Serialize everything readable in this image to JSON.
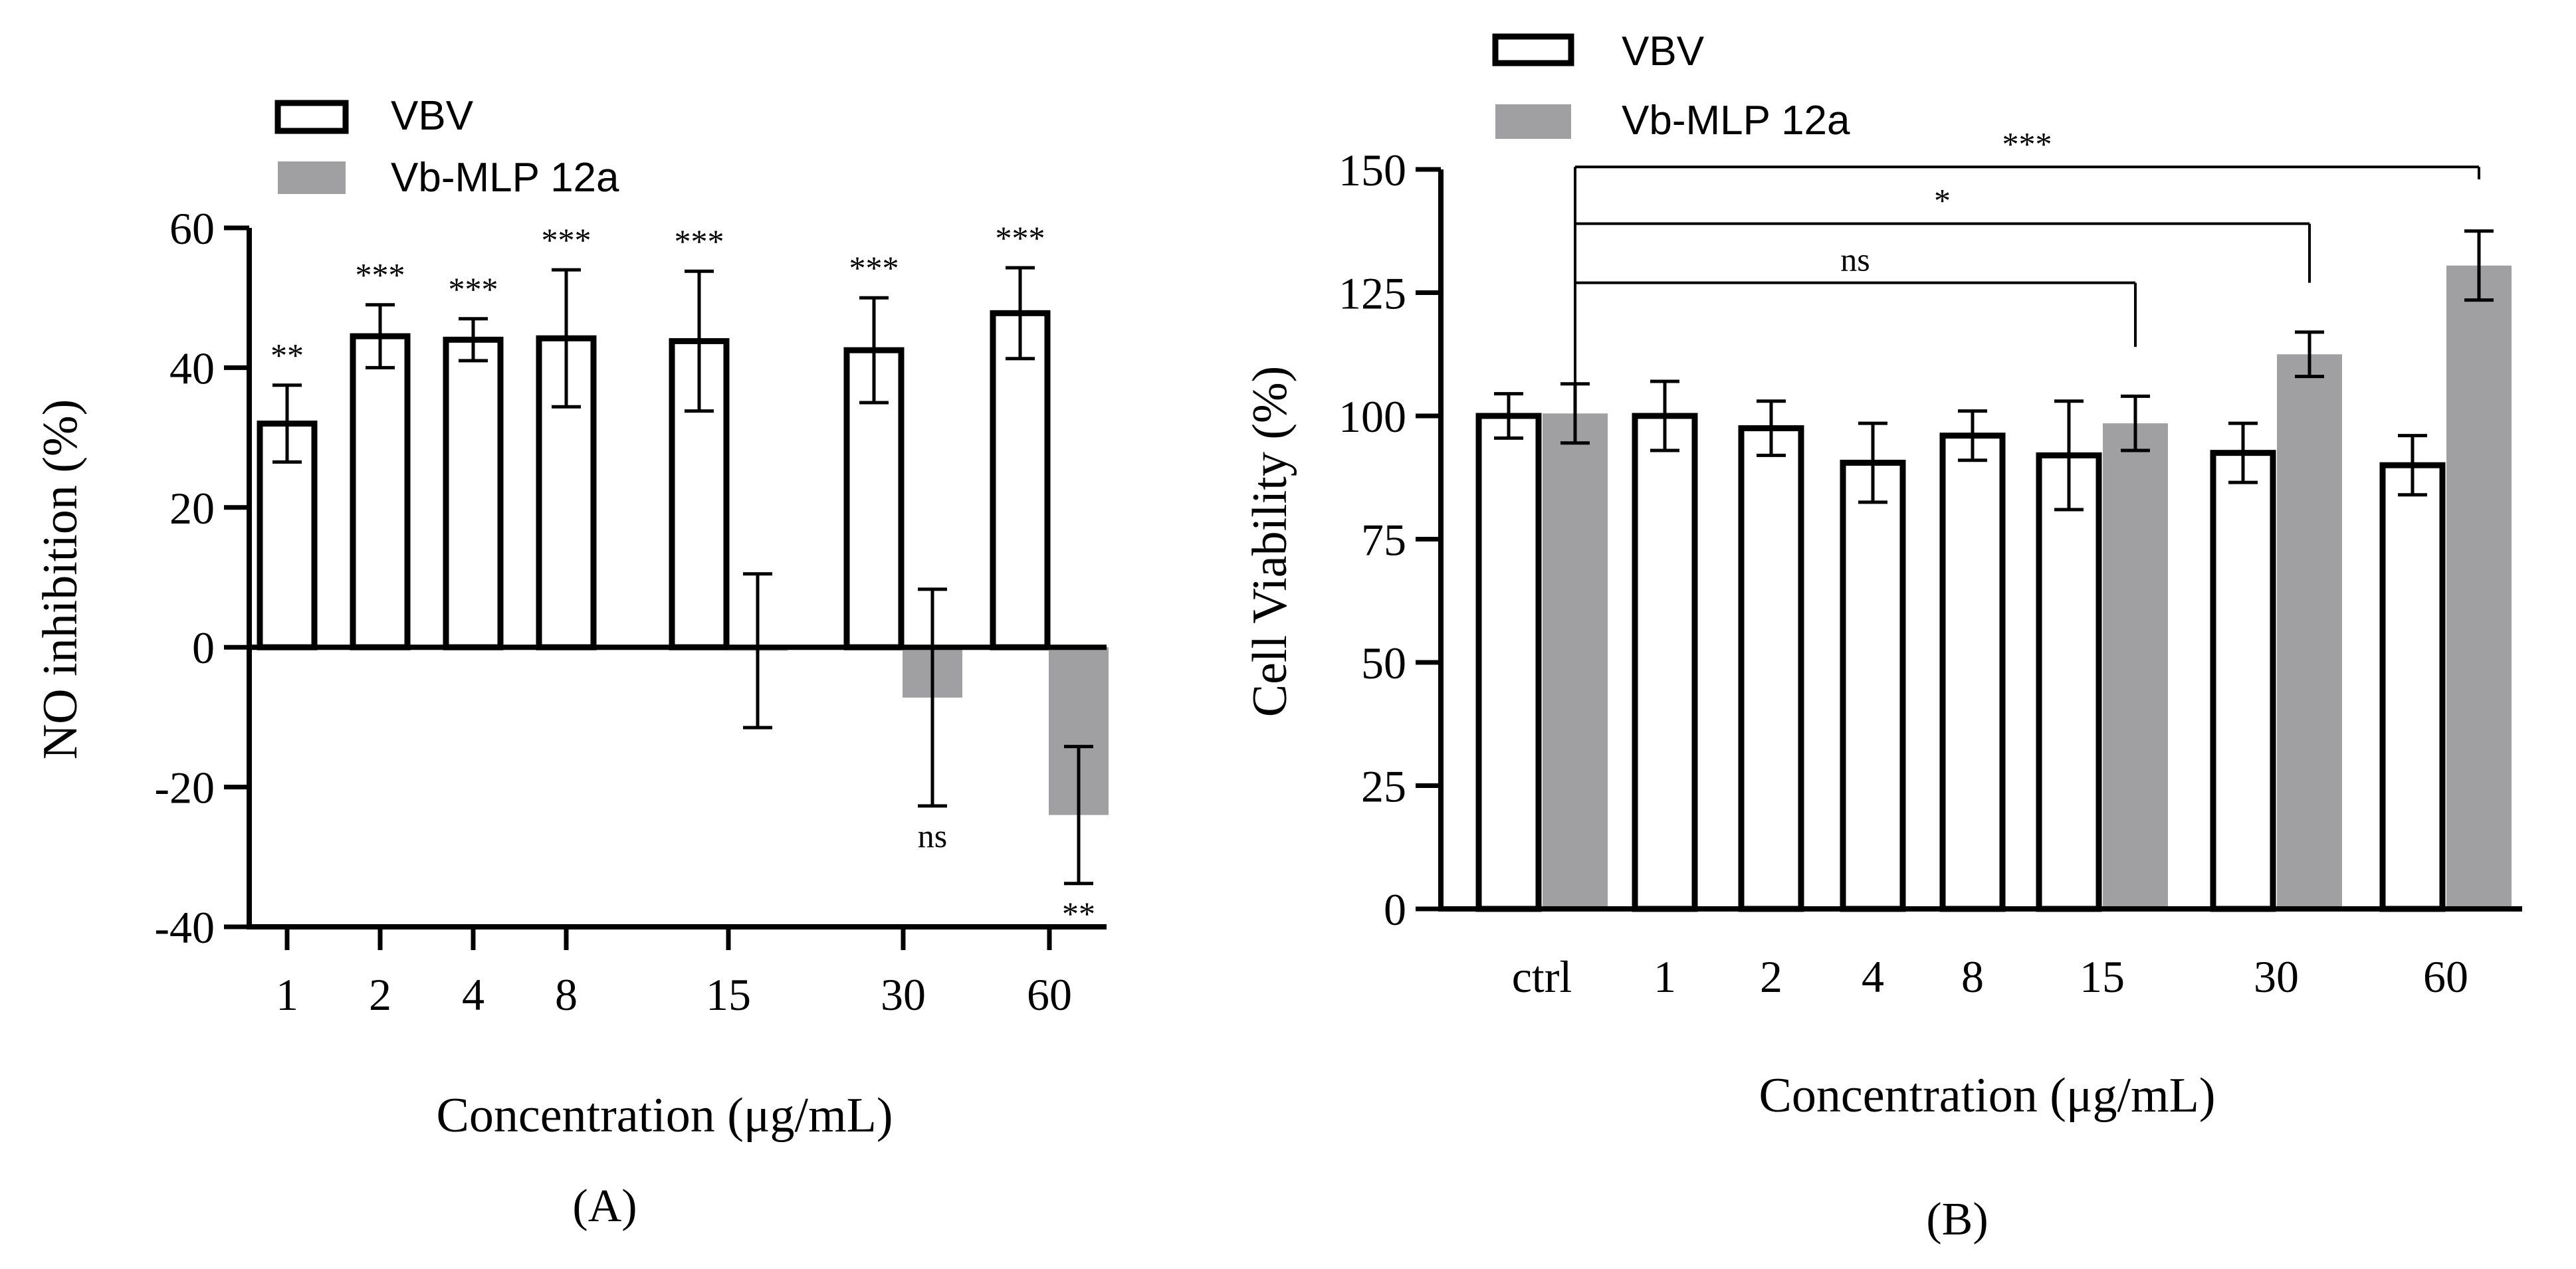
{
  "chart_data": [
    {
      "type": "bar",
      "panel_label": "(A)",
      "xlabel": "Concentration (μg/mL)",
      "ylabel": "NO inhibition (%)",
      "ylim": [
        -40,
        60
      ],
      "yticks": [
        -40,
        -20,
        0,
        20,
        40,
        60
      ],
      "grid": false,
      "legend_position": "top-left",
      "series_colors": [
        "#ffffff",
        "#a0a0a3"
      ],
      "categories": [
        "1",
        "2",
        "4",
        "8",
        "15",
        "30",
        "60"
      ],
      "series": [
        {
          "name": "VBV",
          "values": [
            32,
            44.5,
            44,
            44.2,
            43.8,
            42.5,
            47.8
          ],
          "errors": [
            5.5,
            4.5,
            3,
            9.8,
            10,
            7.5,
            6.5
          ],
          "significance": [
            "**",
            "***",
            "***",
            "***",
            "***",
            "***",
            "***"
          ]
        },
        {
          "name": "Vb-MLP 12a",
          "values": [
            null,
            null,
            null,
            null,
            -0.5,
            -7.2,
            -24
          ],
          "errors": [
            null,
            null,
            null,
            null,
            11,
            15.5,
            9.8
          ],
          "significance": [
            "",
            "",
            "",
            "",
            "",
            "ns",
            "**"
          ]
        }
      ]
    },
    {
      "type": "bar",
      "panel_label": "(B)",
      "xlabel": "Concentration (μg/mL)",
      "ylabel": "Cell Viability (%)",
      "ylim": [
        0,
        150
      ],
      "yticks": [
        0,
        25,
        50,
        75,
        100,
        125,
        150
      ],
      "grid": false,
      "legend_position": "top-left",
      "series_colors": [
        "#ffffff",
        "#a0a0a3"
      ],
      "categories": [
        "ctrl",
        "1",
        "2",
        "4",
        "8",
        "15",
        "30",
        "60"
      ],
      "series": [
        {
          "name": "VBV",
          "values": [
            100,
            100,
            97.5,
            90.5,
            96,
            92,
            92.5,
            90
          ],
          "errors": [
            4.5,
            7,
            5.5,
            8,
            5,
            11,
            6,
            6
          ]
        },
        {
          "name": "Vb-MLP 12a",
          "values": [
            100.5,
            null,
            null,
            null,
            null,
            98.5,
            112.5,
            130.5
          ],
          "errors": [
            6,
            null,
            null,
            null,
            null,
            5.5,
            4.5,
            7
          ]
        }
      ],
      "comparisons": [
        {
          "from": "ctrl",
          "to": "15",
          "label": "ns"
        },
        {
          "from": "ctrl",
          "to": "30",
          "label": "*"
        },
        {
          "from": "ctrl",
          "to": "60",
          "label": "***"
        }
      ]
    }
  ]
}
